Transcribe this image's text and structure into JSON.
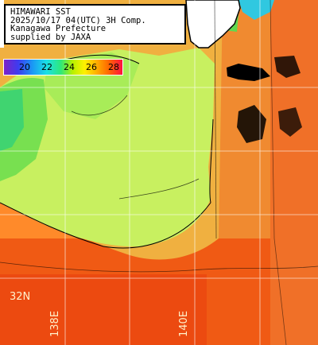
{
  "header": {
    "line1": "HIMAWARI SST",
    "line2": "2025/10/17 04(UTC) 3H Comp.",
    "line3": "Kanagawa Prefecture",
    "line4": "supplied by JAXA"
  },
  "colorbar": {
    "ticks": [
      "20",
      "22",
      "24",
      "26",
      "28"
    ]
  },
  "axis_labels": {
    "lat_32": "32N",
    "lon_138": "138E",
    "lon_140": "140E"
  },
  "colors": {
    "warm_orange": "#ff7a20",
    "deep_red_orange": "#f04a10",
    "yellow_green": "#c8f060",
    "green": "#78e050",
    "land": "#ffffff",
    "coastline": "#000000",
    "grid": "#ffffff"
  }
}
